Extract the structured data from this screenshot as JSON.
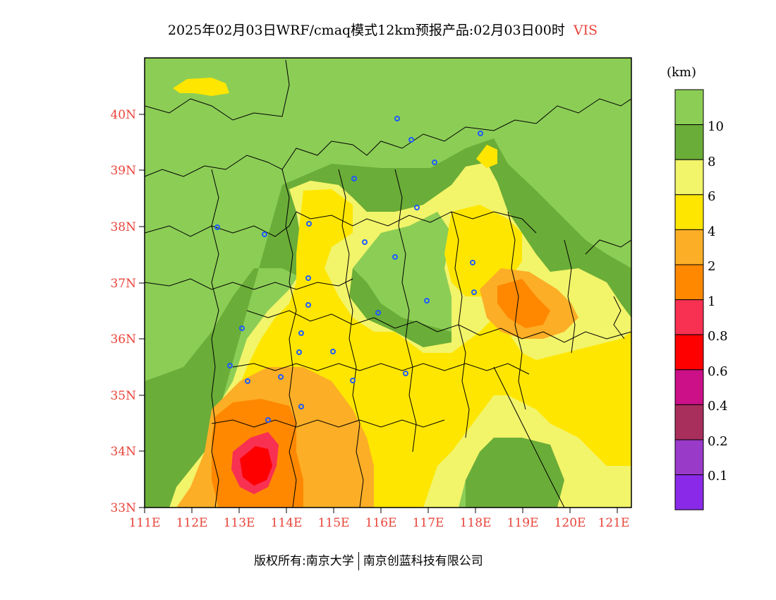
{
  "title": {
    "main": "2025年02月03日WRF/cmaq模式12km预报产品:02月03日00时",
    "variable": "VIS"
  },
  "map": {
    "lat_labels": [
      "40N",
      "39N",
      "38N",
      "37N",
      "36N",
      "35N",
      "34N",
      "33N"
    ],
    "lon_labels": [
      "111E",
      "112E",
      "113E",
      "114E",
      "115E",
      "116E",
      "117E",
      "118E",
      "119E",
      "120E",
      "121E"
    ],
    "lat_range": [
      33,
      41.0
    ],
    "lon_range": [
      111,
      121.4
    ],
    "label_color": "#e8443a",
    "station_color": "#1e5bff"
  },
  "colorbar": {
    "unit": "(km)",
    "levels": [
      "10",
      "8",
      "6",
      "4",
      "2",
      "1",
      "0.8",
      "0.6",
      "0.4",
      "0.2",
      "0.1"
    ],
    "colors": [
      "#8ccd56",
      "#6aad38",
      "#f2f46a",
      "#ffe600",
      "#fcae26",
      "#ff8800",
      "#f83052",
      "#ff0000",
      "#cc1088",
      "#a82e5c",
      "#9a3ac8",
      "#8a2ae8"
    ]
  },
  "footer": {
    "left": "版权所有:南京大学",
    "right": "南京创蓝科技有限公司"
  }
}
